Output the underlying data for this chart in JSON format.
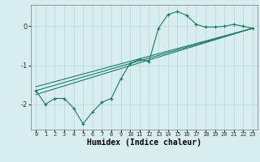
{
  "xlabel": "Humidex (Indice chaleur)",
  "ylabel": "",
  "bg_color": "#d8eeee",
  "grid_color": "#b0d8d8",
  "line_color": "#1a7a6e",
  "xlim": [
    -0.5,
    23.5
  ],
  "ylim": [
    -2.65,
    0.55
  ],
  "yticks": [
    0,
    -1,
    -2
  ],
  "xticks": [
    0,
    1,
    2,
    3,
    4,
    5,
    6,
    7,
    8,
    9,
    10,
    11,
    12,
    13,
    14,
    15,
    16,
    17,
    18,
    19,
    20,
    21,
    22,
    23
  ],
  "curve1_x": [
    0,
    1,
    2,
    3,
    4,
    5,
    6,
    7,
    8,
    9,
    10,
    11,
    12,
    13,
    14,
    15,
    16,
    17,
    18,
    19,
    20,
    21,
    22,
    23
  ],
  "curve1_y": [
    -1.65,
    -2.0,
    -1.85,
    -1.85,
    -2.1,
    -2.5,
    -2.2,
    -1.95,
    -1.85,
    -1.35,
    -0.95,
    -0.85,
    -0.9,
    -0.05,
    0.3,
    0.38,
    0.28,
    0.05,
    -0.02,
    -0.02,
    0.0,
    0.05,
    0.0,
    -0.05
  ],
  "line1_x": [
    0,
    23
  ],
  "line1_y": [
    -1.65,
    -0.05
  ],
  "line2_x": [
    0,
    23
  ],
  "line2_y": [
    -1.55,
    -0.05
  ],
  "line3_x": [
    0,
    23
  ],
  "line3_y": [
    -1.75,
    -0.05
  ]
}
